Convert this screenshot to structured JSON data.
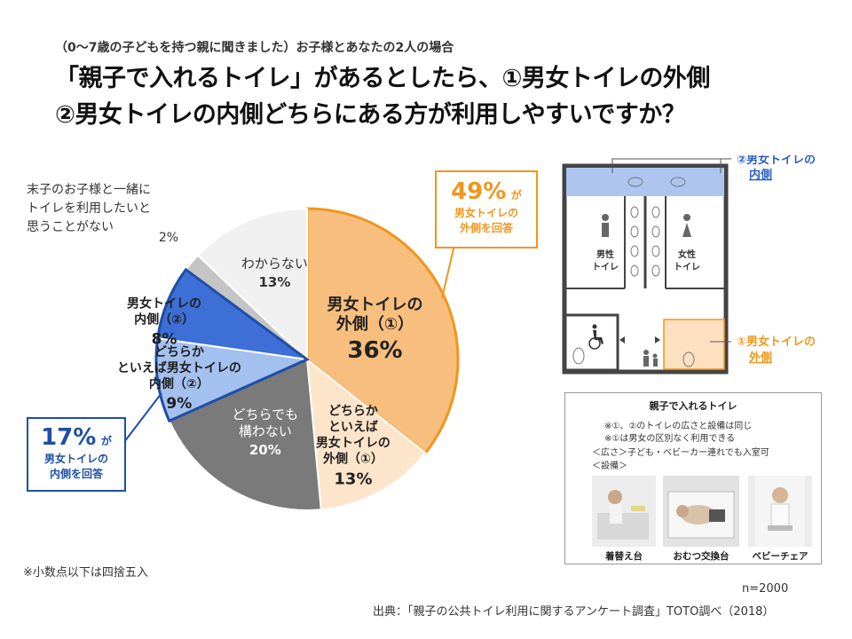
{
  "header": {
    "subtitle": "（0〜7歳の子どもを持つ親に聞きました）お子様とあなたの2人の場合",
    "title_line1": "「親子で入れるトイレ」があるとしたら、①男女トイレの外側",
    "title_line2": "②男女トイレの内側どちらにある方が利用しやすいですか？"
  },
  "chart_data": {
    "type": "pie",
    "title": "",
    "slices": [
      {
        "label_lines": [
          "男女トイレの",
          "外側（①）"
        ],
        "value": 36,
        "value_label": "36%",
        "color": "#f8be7e"
      },
      {
        "label_lines": [
          "どちらか",
          "といえば",
          "男女トイレの",
          "外側（①）"
        ],
        "value": 13,
        "value_label": "13%",
        "color": "#fde5cb"
      },
      {
        "label_lines": [
          "どちらでも",
          "構わない"
        ],
        "value": 20,
        "value_label": "20%",
        "color": "#7a7a7a"
      },
      {
        "label_lines": [
          "どちらか",
          "といえば男女トイレの",
          "内側（②）"
        ],
        "value": 9,
        "value_label": "9%",
        "color": "#a4c0ee"
      },
      {
        "label_lines": [
          "男女トイレの",
          "内側（②）"
        ],
        "value": 8,
        "value_label": "8%",
        "color": "#3d6fd7"
      },
      {
        "label_lines": [
          "末子のお子様と一緒に",
          "トイレを利用したいと",
          "思うことがない"
        ],
        "value": 2,
        "value_label": "2%",
        "color": "#c4c4c4"
      },
      {
        "label_lines": [
          "わからない"
        ],
        "value": 13,
        "value_label": "13%",
        "color": "#f0f0f0"
      }
    ],
    "callouts": {
      "outside": {
        "value": "49%",
        "suffix": "が",
        "lines": [
          "男女トイレの",
          "外側を回答"
        ],
        "color": "#f0961e"
      },
      "inside": {
        "value": "17%",
        "suffix": "が",
        "lines": [
          "男女トイレの",
          "内側を回答"
        ],
        "color": "#1e4fa6"
      }
    }
  },
  "floorplan": {
    "label_inside_lines": [
      "②男女トイレの",
      "内側"
    ],
    "label_outside_lines": [
      "①男女トイレの",
      "外側"
    ],
    "male_lines": [
      "男性",
      "トイレ"
    ],
    "female_lines": [
      "女性",
      "トイレ"
    ],
    "accent_blue": "#2c5fc3",
    "accent_orange": "#f0961e"
  },
  "infobox": {
    "title": "親子で入れるトイレ",
    "note1": "※①、②のトイレの広さと設備は同じ",
    "note2": "※①は男女の区別なく利用できる",
    "note3": "＜広さ＞子ども・ベビーカー連れでも入室可",
    "note4": "＜設備＞",
    "captions": [
      "着替え台",
      "おむつ交換台",
      "ベビーチェア"
    ]
  },
  "footer": {
    "footnote": "※小数点以下は四捨五入",
    "n": "n=2000",
    "source": "出典：「親子の公共トイレ利用に関するアンケート調査」TOTO調べ（2018）"
  }
}
